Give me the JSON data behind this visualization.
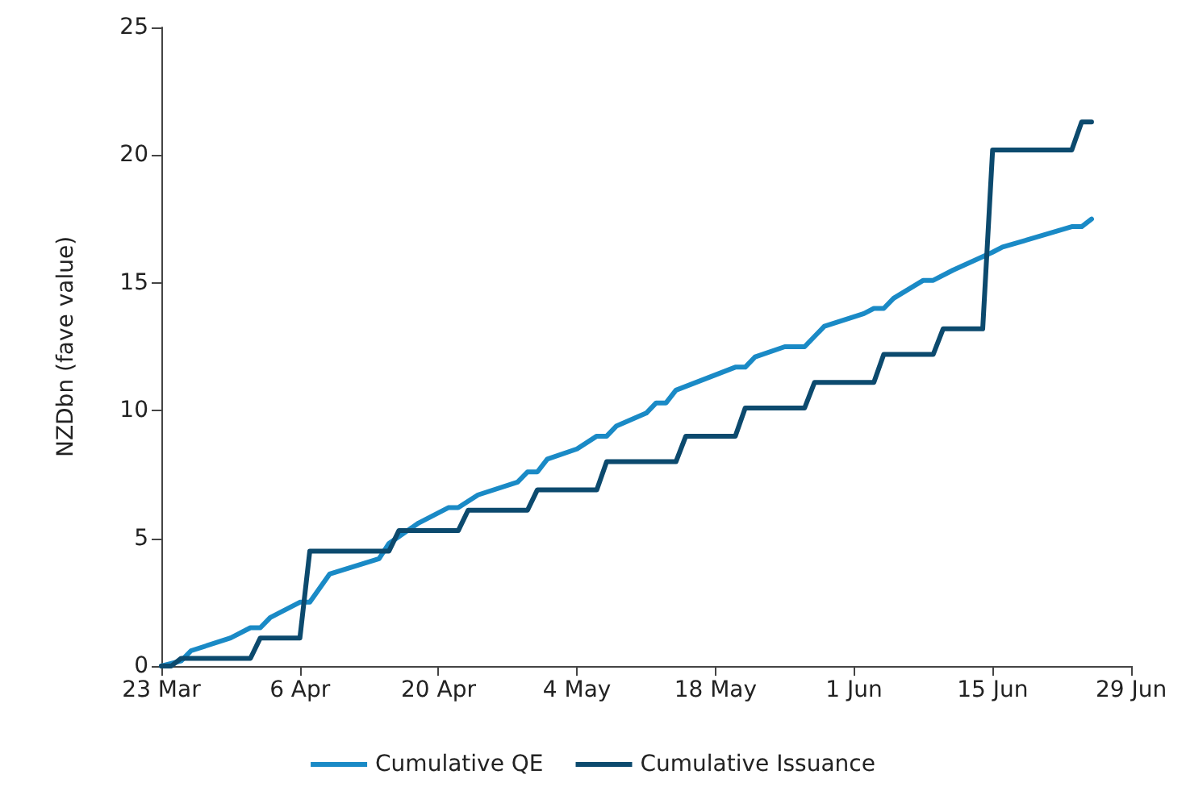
{
  "chart_data": {
    "type": "line",
    "ylabel": "NZDbn (fave value)",
    "xlim": [
      "--03-23",
      "--06-29"
    ],
    "ylim": [
      0,
      25
    ],
    "yticks": [
      0,
      5,
      10,
      15,
      20,
      25
    ],
    "xticks": [
      {
        "value": "--03-23",
        "label": "23 Mar"
      },
      {
        "value": "--04-06",
        "label": "6 Apr"
      },
      {
        "value": "--04-20",
        "label": "20 Apr"
      },
      {
        "value": "--05-04",
        "label": "4 May"
      },
      {
        "value": "--05-18",
        "label": "18 May"
      },
      {
        "value": "--06-01",
        "label": "1 Jun"
      },
      {
        "value": "--06-15",
        "label": "15 Jun"
      },
      {
        "value": "--06-29",
        "label": "29 Jun"
      }
    ],
    "grid": false,
    "legend": "bottom",
    "marker": "none",
    "line_style": "solid",
    "series": [
      {
        "name": "Cumulative QE",
        "color": "#1a8ac6",
        "x": [
          "--03-23",
          "--03-25",
          "--03-26",
          "--03-30",
          "--04-01",
          "--04-02",
          "--04-03",
          "--04-06",
          "--04-07",
          "--04-09",
          "--04-14",
          "--04-15",
          "--04-18",
          "--04-21",
          "--04-22",
          "--04-24",
          "--04-28",
          "--04-29",
          "--04-30",
          "--05-01",
          "--05-04",
          "--05-06",
          "--05-07",
          "--05-08",
          "--05-11",
          "--05-12",
          "--05-13",
          "--05-14",
          "--05-18",
          "--05-20",
          "--05-21",
          "--05-22",
          "--05-25",
          "--05-27",
          "--05-29",
          "--06-02",
          "--06-03",
          "--06-04",
          "--06-05",
          "--06-08",
          "--06-09",
          "--06-11",
          "--06-15",
          "--06-16",
          "--06-23",
          "--06-24",
          "--06-25"
        ],
        "values": [
          0,
          0.2,
          0.6,
          1.1,
          1.5,
          1.5,
          1.9,
          2.5,
          2.5,
          3.6,
          4.2,
          4.8,
          5.6,
          6.2,
          6.2,
          6.7,
          7.2,
          7.6,
          7.6,
          8.1,
          8.5,
          9.0,
          9.0,
          9.4,
          9.9,
          10.3,
          10.3,
          10.8,
          11.4,
          11.7,
          11.7,
          12.1,
          12.5,
          12.5,
          13.3,
          13.8,
          14.0,
          14.0,
          14.4,
          15.1,
          15.1,
          15.5,
          16.2,
          16.4,
          17.2,
          17.2,
          17.5
        ]
      },
      {
        "name": "Cumulative Issuance",
        "color": "#0c4a6e",
        "x": [
          "--03-23",
          "--03-24",
          "--03-25",
          "--04-01",
          "--04-02",
          "--04-06",
          "--04-07",
          "--04-15",
          "--04-16",
          "--04-22",
          "--04-23",
          "--04-29",
          "--04-30",
          "--05-06",
          "--05-07",
          "--05-14",
          "--05-15",
          "--05-20",
          "--05-21",
          "--05-27",
          "--05-28",
          "--06-03",
          "--06-04",
          "--06-09",
          "--06-10",
          "--06-14",
          "--06-15",
          "--06-23",
          "--06-24",
          "--06-25"
        ],
        "values": [
          0,
          0,
          0.3,
          0.3,
          1.1,
          1.1,
          4.5,
          4.5,
          5.3,
          5.3,
          6.1,
          6.1,
          6.9,
          6.9,
          8.0,
          8.0,
          9.0,
          9.0,
          10.1,
          10.1,
          11.1,
          11.1,
          12.2,
          12.2,
          13.2,
          13.2,
          20.2,
          20.2,
          21.3,
          21.3
        ]
      }
    ]
  }
}
